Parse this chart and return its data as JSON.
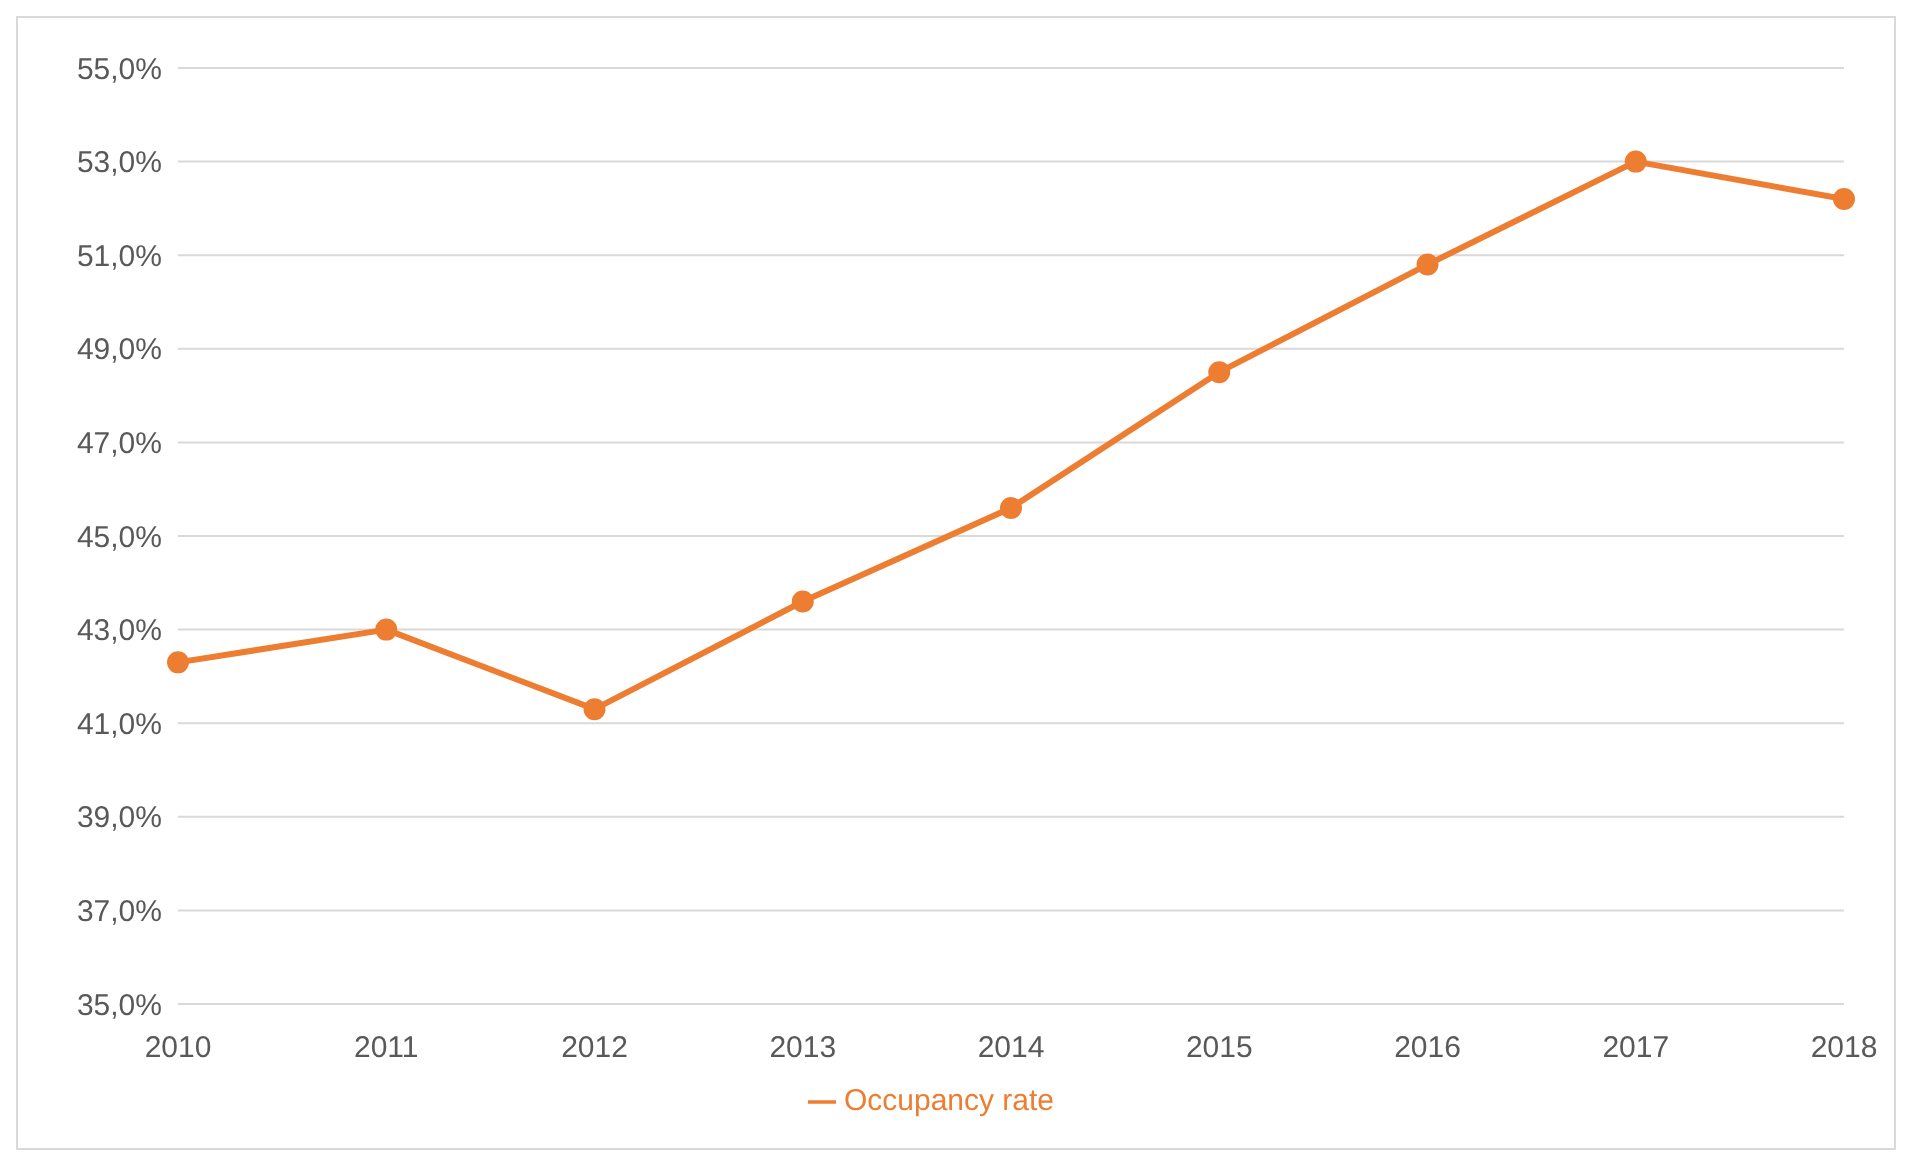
{
  "chart_data": {
    "type": "line",
    "categories": [
      "2010",
      "2011",
      "2012",
      "2013",
      "2014",
      "2015",
      "2016",
      "2017",
      "2018"
    ],
    "series": [
      {
        "name": "Occupancy rate",
        "color": "#ed7d31",
        "values": [
          42.3,
          43.0,
          41.3,
          43.6,
          45.6,
          48.5,
          50.8,
          53.0,
          52.2
        ]
      }
    ],
    "ylim": [
      35,
      55
    ],
    "yticks": [
      {
        "value": 35,
        "label": "35,0%"
      },
      {
        "value": 37,
        "label": "37,0%"
      },
      {
        "value": 39,
        "label": "39,0%"
      },
      {
        "value": 41,
        "label": "41,0%"
      },
      {
        "value": 43,
        "label": "43,0%"
      },
      {
        "value": 45,
        "label": "45,0%"
      },
      {
        "value": 47,
        "label": "47,0%"
      },
      {
        "value": 49,
        "label": "49,0%"
      },
      {
        "value": 51,
        "label": "51,0%"
      },
      {
        "value": 53,
        "label": "53,0%"
      },
      {
        "value": 55,
        "label": "55,0%"
      }
    ],
    "grid": "y",
    "legend": "bottom",
    "marker": "circle",
    "line_style": "solid"
  }
}
